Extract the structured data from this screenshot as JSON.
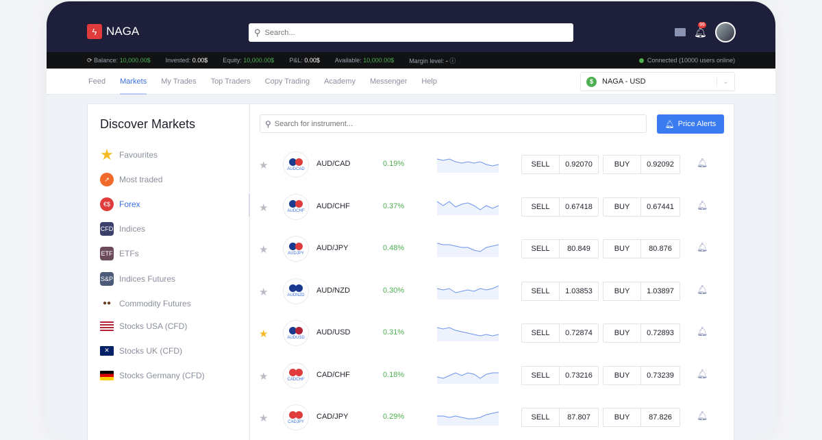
{
  "brand": "NAGA",
  "search": {
    "placeholder": "Search..."
  },
  "header": {
    "notification_count": "99"
  },
  "stats": {
    "balance_label": "Balance:",
    "balance": "10,000.00$",
    "invested_label": "Invested:",
    "invested": "0.00$",
    "equity_label": "Equity:",
    "equity": "10,000.00$",
    "pnl_label": "P&L:",
    "pnl": "0.00$",
    "available_label": "Available:",
    "available": "10,000.00$",
    "margin_label": "Margin level:",
    "margin": "-",
    "connection": "Connected (10000 users online)"
  },
  "nav": {
    "items": [
      "Feed",
      "Markets",
      "My Trades",
      "Top Traders",
      "Copy Trading",
      "Academy",
      "Messenger",
      "Help"
    ],
    "active": "Markets"
  },
  "account": {
    "label": "NAGA - USD"
  },
  "sidebar": {
    "title": "Discover Markets",
    "items": [
      {
        "label": "Favourites",
        "icon": "star",
        "color": "#f5b921"
      },
      {
        "label": "Most traded",
        "icon": "trending-up",
        "color": "#f06a2b"
      },
      {
        "label": "Forex",
        "icon": "currency",
        "color": "#e03c3c"
      },
      {
        "label": "Indices",
        "icon": "CFD",
        "color": "#3b3f6b"
      },
      {
        "label": "ETFs",
        "icon": "ETF",
        "color": "#6b4b5a"
      },
      {
        "label": "Indices Futures",
        "icon": "S&P",
        "color": "#4a5a78"
      },
      {
        "label": "Commodity Futures",
        "icon": "coffee-beans",
        "color": "#6b3e22"
      },
      {
        "label": "Stocks USA (CFD)",
        "icon": "flag-us",
        "color": "#b22234"
      },
      {
        "label": "Stocks UK (CFD)",
        "icon": "flag-uk",
        "color": "#012169"
      },
      {
        "label": "Stocks Germany (CFD)",
        "icon": "flag-de",
        "color": "#dd0000"
      }
    ]
  },
  "main": {
    "search_placeholder": "Search for instrument...",
    "price_alerts": "Price Alerts",
    "sell_label": "SELL",
    "buy_label": "BUY",
    "instruments": [
      {
        "name": "AUD/CAD",
        "code": "AUDCAD",
        "change": "0.19%",
        "sell": "0.92070",
        "buy": "0.92092",
        "favourite": false,
        "colors": [
          "#1a3a8f",
          "#e03c3c"
        ],
        "spark": [
          8,
          7,
          8,
          6,
          5,
          6,
          5,
          6,
          4,
          3,
          4
        ]
      },
      {
        "name": "AUD/CHF",
        "code": "AUDCHF",
        "change": "0.37%",
        "sell": "0.67418",
        "buy": "0.67441",
        "favourite": false,
        "colors": [
          "#1a3a8f",
          "#e03c3c"
        ],
        "spark": [
          8,
          5,
          8,
          4,
          6,
          7,
          5,
          2,
          5,
          3,
          5
        ]
      },
      {
        "name": "AUD/JPY",
        "code": "AUDJPY",
        "change": "0.48%",
        "sell": "80.849",
        "buy": "80.876",
        "favourite": false,
        "colors": [
          "#1a3a8f",
          "#e03c3c"
        ],
        "spark": [
          8,
          7,
          7,
          6,
          5,
          5,
          3,
          2,
          5,
          6,
          7
        ]
      },
      {
        "name": "AUD/NZD",
        "code": "AUDNZD",
        "change": "0.30%",
        "sell": "1.03853",
        "buy": "1.03897",
        "favourite": false,
        "colors": [
          "#1a3a8f",
          "#1a3a8f"
        ],
        "spark": [
          6,
          5,
          6,
          3,
          4,
          5,
          4,
          6,
          5,
          6,
          8
        ]
      },
      {
        "name": "AUD/USD",
        "code": "AUDUSD",
        "change": "0.31%",
        "sell": "0.72874",
        "buy": "0.72893",
        "favourite": true,
        "colors": [
          "#1a3a8f",
          "#b22234"
        ],
        "spark": [
          8,
          7,
          8,
          6,
          5,
          4,
          3,
          2,
          3,
          2,
          3
        ]
      },
      {
        "name": "CAD/CHF",
        "code": "CADCHF",
        "change": "0.18%",
        "sell": "0.73216",
        "buy": "0.73239",
        "favourite": false,
        "colors": [
          "#e03c3c",
          "#e03c3c"
        ],
        "spark": [
          3,
          2,
          4,
          6,
          4,
          6,
          5,
          2,
          5,
          6,
          6
        ]
      },
      {
        "name": "CAD/JPY",
        "code": "CADJPY",
        "change": "0.29%",
        "sell": "87.807",
        "buy": "87.826",
        "favourite": false,
        "colors": [
          "#e03c3c",
          "#e03c3c"
        ],
        "spark": [
          5,
          5,
          4,
          5,
          4,
          3,
          3,
          4,
          6,
          7,
          8
        ]
      }
    ]
  },
  "colors": {
    "header": "#1e1f3a",
    "accent": "#3a6fe0",
    "positive": "#4caf50",
    "spark": "#6b93f0"
  }
}
